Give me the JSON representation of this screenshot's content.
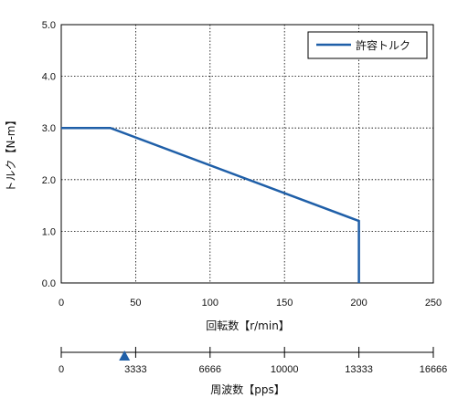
{
  "chart_data": {
    "type": "line",
    "ylabel": "トルク【N-m】",
    "xlabel": "回転数【r/min】",
    "xlim": [
      0,
      250
    ],
    "ylim": [
      0,
      5
    ],
    "x_ticks": [
      "0",
      "50",
      "100",
      "150",
      "200",
      "250"
    ],
    "y_ticks": [
      "0.0",
      "1.0",
      "2.0",
      "3.0",
      "4.0",
      "5.0"
    ],
    "grid": true,
    "legend_position": "top-right",
    "series": [
      {
        "name": "許容トルク",
        "color": "#1f5fa8",
        "x": [
          0,
          33,
          200,
          200
        ],
        "y": [
          3.0,
          3.0,
          1.2,
          0.0
        ]
      }
    ],
    "secondary_axis": {
      "xlabel": "周波数【pps】",
      "tick_labels": [
        "0",
        "3333",
        "6666",
        "10000",
        "13333",
        "16666"
      ],
      "marker_value": 2833,
      "marker_color": "#1f5fa8"
    }
  }
}
